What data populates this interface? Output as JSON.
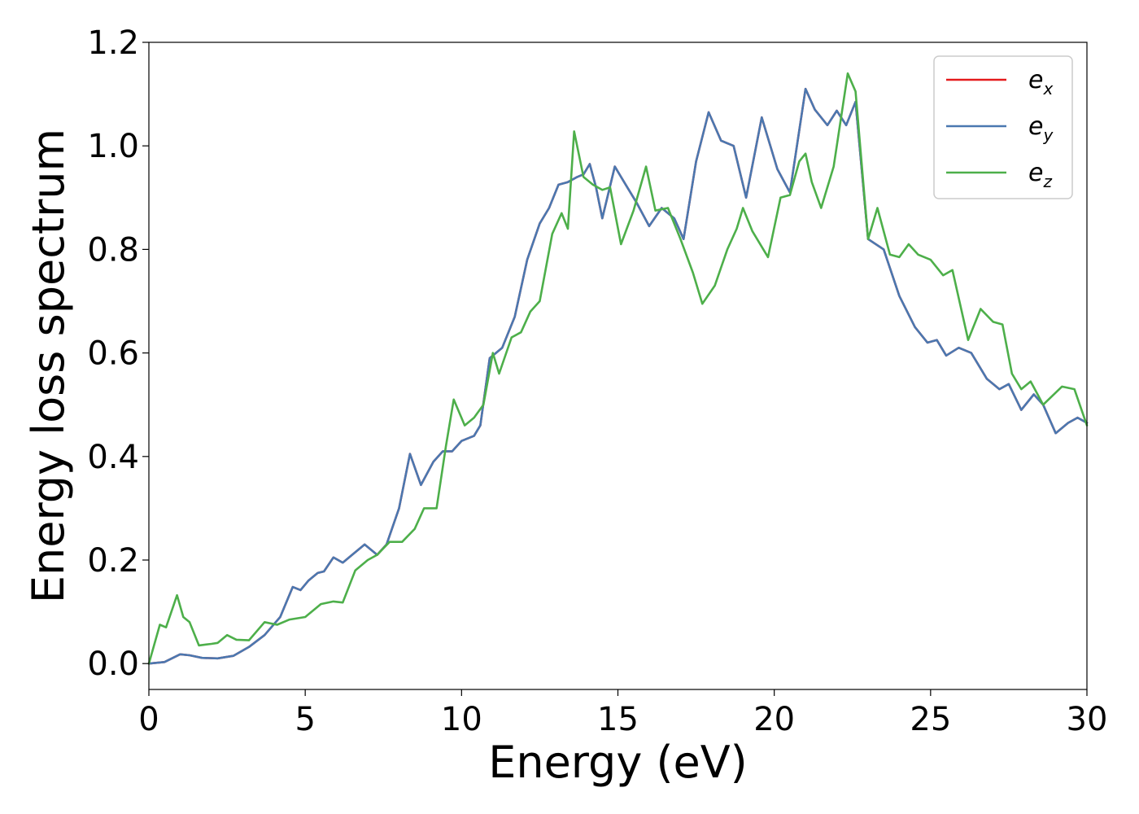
{
  "chart_data": {
    "type": "line",
    "xlabel": "Energy (eV)",
    "ylabel": "Energy loss spectrum",
    "xlim": [
      0,
      30
    ],
    "ylim": [
      -0.05,
      1.2
    ],
    "x_ticks": [
      0,
      5,
      10,
      15,
      20,
      25,
      30
    ],
    "x_tick_labels": [
      "0",
      "5",
      "10",
      "15",
      "20",
      "25",
      "30"
    ],
    "y_ticks": [
      0.0,
      0.2,
      0.4,
      0.6,
      0.8,
      1.0,
      1.2
    ],
    "y_tick_labels": [
      "0.0",
      "0.2",
      "0.4",
      "0.6",
      "0.8",
      "1.0",
      "1.2"
    ],
    "grid": false,
    "legend_position": "top-right",
    "legend": [
      {
        "base": "e",
        "sub": "x",
        "color": "#e41a1c"
      },
      {
        "base": "e",
        "sub": "y",
        "color": "#4a78b0"
      },
      {
        "base": "e",
        "sub": "z",
        "color": "#4daf4a"
      }
    ],
    "series": [
      {
        "name": "e_x",
        "color": "#e41a1c",
        "points": [
          [
            0,
            0
          ],
          [
            0.5,
            0.003
          ],
          [
            1,
            0.018
          ],
          [
            1.3,
            0.016
          ],
          [
            1.7,
            0.011
          ],
          [
            2.2,
            0.01
          ],
          [
            2.7,
            0.015
          ],
          [
            3.2,
            0.032
          ],
          [
            3.7,
            0.055
          ],
          [
            4.2,
            0.09
          ],
          [
            4.6,
            0.148
          ],
          [
            4.85,
            0.142
          ],
          [
            5.1,
            0.16
          ],
          [
            5.4,
            0.175
          ],
          [
            5.6,
            0.178
          ],
          [
            5.9,
            0.205
          ],
          [
            6.2,
            0.195
          ],
          [
            6.5,
            0.21
          ],
          [
            6.9,
            0.23
          ],
          [
            7.3,
            0.21
          ],
          [
            7.6,
            0.23
          ],
          [
            8,
            0.3
          ],
          [
            8.35,
            0.405
          ],
          [
            8.7,
            0.345
          ],
          [
            9.1,
            0.39
          ],
          [
            9.4,
            0.41
          ],
          [
            9.7,
            0.41
          ],
          [
            10,
            0.43
          ],
          [
            10.4,
            0.44
          ],
          [
            10.6,
            0.46
          ],
          [
            10.9,
            0.59
          ],
          [
            11.3,
            0.61
          ],
          [
            11.7,
            0.67
          ],
          [
            12.1,
            0.78
          ],
          [
            12.5,
            0.85
          ],
          [
            12.8,
            0.88
          ],
          [
            13.1,
            0.925
          ],
          [
            13.4,
            0.93
          ],
          [
            13.7,
            0.94
          ],
          [
            13.9,
            0.945
          ],
          [
            14.1,
            0.965
          ],
          [
            14.3,
            0.92
          ],
          [
            14.5,
            0.86
          ],
          [
            14.9,
            0.96
          ],
          [
            15.3,
            0.92
          ],
          [
            15.6,
            0.89
          ],
          [
            16,
            0.845
          ],
          [
            16.4,
            0.88
          ],
          [
            16.8,
            0.86
          ],
          [
            17.1,
            0.82
          ],
          [
            17.5,
            0.97
          ],
          [
            17.9,
            1.065
          ],
          [
            18.3,
            1.01
          ],
          [
            18.7,
            1.0
          ],
          [
            19.1,
            0.9
          ],
          [
            19.6,
            1.055
          ],
          [
            20.1,
            0.955
          ],
          [
            20.5,
            0.91
          ],
          [
            21,
            1.11
          ],
          [
            21.3,
            1.07
          ],
          [
            21.7,
            1.04
          ],
          [
            22,
            1.068
          ],
          [
            22.3,
            1.04
          ],
          [
            22.6,
            1.085
          ],
          [
            23,
            0.82
          ],
          [
            23.5,
            0.8
          ],
          [
            24,
            0.71
          ],
          [
            24.5,
            0.65
          ],
          [
            24.9,
            0.62
          ],
          [
            25.2,
            0.625
          ],
          [
            25.5,
            0.595
          ],
          [
            25.9,
            0.61
          ],
          [
            26.3,
            0.6
          ],
          [
            26.8,
            0.55
          ],
          [
            27.2,
            0.53
          ],
          [
            27.5,
            0.54
          ],
          [
            27.9,
            0.49
          ],
          [
            28.3,
            0.52
          ],
          [
            28.6,
            0.5
          ],
          [
            29,
            0.445
          ],
          [
            29.4,
            0.465
          ],
          [
            29.7,
            0.475
          ],
          [
            30,
            0.465
          ]
        ]
      },
      {
        "name": "e_y",
        "color": "#4a78b0",
        "points": [
          [
            0,
            0
          ],
          [
            0.5,
            0.003
          ],
          [
            1,
            0.018
          ],
          [
            1.3,
            0.016
          ],
          [
            1.7,
            0.011
          ],
          [
            2.2,
            0.01
          ],
          [
            2.7,
            0.015
          ],
          [
            3.2,
            0.032
          ],
          [
            3.7,
            0.055
          ],
          [
            4.2,
            0.09
          ],
          [
            4.6,
            0.148
          ],
          [
            4.85,
            0.142
          ],
          [
            5.1,
            0.16
          ],
          [
            5.4,
            0.175
          ],
          [
            5.6,
            0.178
          ],
          [
            5.9,
            0.205
          ],
          [
            6.2,
            0.195
          ],
          [
            6.5,
            0.21
          ],
          [
            6.9,
            0.23
          ],
          [
            7.3,
            0.21
          ],
          [
            7.6,
            0.23
          ],
          [
            8,
            0.3
          ],
          [
            8.35,
            0.405
          ],
          [
            8.7,
            0.345
          ],
          [
            9.1,
            0.39
          ],
          [
            9.4,
            0.41
          ],
          [
            9.7,
            0.41
          ],
          [
            10,
            0.43
          ],
          [
            10.4,
            0.44
          ],
          [
            10.6,
            0.46
          ],
          [
            10.9,
            0.59
          ],
          [
            11.3,
            0.61
          ],
          [
            11.7,
            0.67
          ],
          [
            12.1,
            0.78
          ],
          [
            12.5,
            0.85
          ],
          [
            12.8,
            0.88
          ],
          [
            13.1,
            0.925
          ],
          [
            13.4,
            0.93
          ],
          [
            13.7,
            0.94
          ],
          [
            13.9,
            0.945
          ],
          [
            14.1,
            0.965
          ],
          [
            14.3,
            0.92
          ],
          [
            14.5,
            0.86
          ],
          [
            14.9,
            0.96
          ],
          [
            15.3,
            0.92
          ],
          [
            15.6,
            0.89
          ],
          [
            16,
            0.845
          ],
          [
            16.4,
            0.88
          ],
          [
            16.8,
            0.86
          ],
          [
            17.1,
            0.82
          ],
          [
            17.5,
            0.97
          ],
          [
            17.9,
            1.065
          ],
          [
            18.3,
            1.01
          ],
          [
            18.7,
            1.0
          ],
          [
            19.1,
            0.9
          ],
          [
            19.6,
            1.055
          ],
          [
            20.1,
            0.955
          ],
          [
            20.5,
            0.91
          ],
          [
            21,
            1.11
          ],
          [
            21.3,
            1.07
          ],
          [
            21.7,
            1.04
          ],
          [
            22,
            1.068
          ],
          [
            22.3,
            1.04
          ],
          [
            22.6,
            1.085
          ],
          [
            23,
            0.82
          ],
          [
            23.5,
            0.8
          ],
          [
            24,
            0.71
          ],
          [
            24.5,
            0.65
          ],
          [
            24.9,
            0.62
          ],
          [
            25.2,
            0.625
          ],
          [
            25.5,
            0.595
          ],
          [
            25.9,
            0.61
          ],
          [
            26.3,
            0.6
          ],
          [
            26.8,
            0.55
          ],
          [
            27.2,
            0.53
          ],
          [
            27.5,
            0.54
          ],
          [
            27.9,
            0.49
          ],
          [
            28.3,
            0.52
          ],
          [
            28.6,
            0.5
          ],
          [
            29,
            0.445
          ],
          [
            29.4,
            0.465
          ],
          [
            29.7,
            0.475
          ],
          [
            30,
            0.465
          ]
        ]
      },
      {
        "name": "e_z",
        "color": "#4daf4a",
        "points": [
          [
            0,
            0
          ],
          [
            0.35,
            0.075
          ],
          [
            0.55,
            0.07
          ],
          [
            0.9,
            0.132
          ],
          [
            1.1,
            0.09
          ],
          [
            1.3,
            0.08
          ],
          [
            1.6,
            0.035
          ],
          [
            2,
            0.038
          ],
          [
            2.2,
            0.04
          ],
          [
            2.5,
            0.055
          ],
          [
            2.8,
            0.046
          ],
          [
            3.2,
            0.045
          ],
          [
            3.7,
            0.08
          ],
          [
            4.1,
            0.075
          ],
          [
            4.5,
            0.085
          ],
          [
            5,
            0.09
          ],
          [
            5.5,
            0.115
          ],
          [
            5.9,
            0.12
          ],
          [
            6.2,
            0.118
          ],
          [
            6.6,
            0.18
          ],
          [
            7,
            0.2
          ],
          [
            7.3,
            0.21
          ],
          [
            7.7,
            0.235
          ],
          [
            8.1,
            0.235
          ],
          [
            8.5,
            0.26
          ],
          [
            8.8,
            0.3
          ],
          [
            9.2,
            0.3
          ],
          [
            9.5,
            0.42
          ],
          [
            9.75,
            0.51
          ],
          [
            10.1,
            0.46
          ],
          [
            10.4,
            0.475
          ],
          [
            10.7,
            0.5
          ],
          [
            11,
            0.6
          ],
          [
            11.2,
            0.56
          ],
          [
            11.6,
            0.63
          ],
          [
            11.9,
            0.64
          ],
          [
            12.2,
            0.68
          ],
          [
            12.5,
            0.7
          ],
          [
            12.9,
            0.83
          ],
          [
            13.2,
            0.87
          ],
          [
            13.4,
            0.84
          ],
          [
            13.6,
            1.028
          ],
          [
            13.9,
            0.94
          ],
          [
            14.2,
            0.925
          ],
          [
            14.5,
            0.915
          ],
          [
            14.75,
            0.92
          ],
          [
            15.1,
            0.81
          ],
          [
            15.5,
            0.875
          ],
          [
            15.9,
            0.96
          ],
          [
            16.2,
            0.875
          ],
          [
            16.6,
            0.88
          ],
          [
            17,
            0.82
          ],
          [
            17.4,
            0.755
          ],
          [
            17.7,
            0.695
          ],
          [
            18.1,
            0.73
          ],
          [
            18.5,
            0.8
          ],
          [
            18.8,
            0.84
          ],
          [
            19,
            0.88
          ],
          [
            19.3,
            0.835
          ],
          [
            19.8,
            0.785
          ],
          [
            20.2,
            0.9
          ],
          [
            20.5,
            0.905
          ],
          [
            20.8,
            0.97
          ],
          [
            21,
            0.985
          ],
          [
            21.2,
            0.93
          ],
          [
            21.5,
            0.88
          ],
          [
            21.9,
            0.96
          ],
          [
            22.35,
            1.14
          ],
          [
            22.6,
            1.105
          ],
          [
            23,
            0.82
          ],
          [
            23.3,
            0.88
          ],
          [
            23.7,
            0.79
          ],
          [
            24,
            0.785
          ],
          [
            24.3,
            0.81
          ],
          [
            24.6,
            0.79
          ],
          [
            25,
            0.78
          ],
          [
            25.4,
            0.75
          ],
          [
            25.7,
            0.76
          ],
          [
            26.2,
            0.625
          ],
          [
            26.6,
            0.685
          ],
          [
            27,
            0.66
          ],
          [
            27.3,
            0.655
          ],
          [
            27.6,
            0.56
          ],
          [
            27.9,
            0.53
          ],
          [
            28.2,
            0.545
          ],
          [
            28.6,
            0.5
          ],
          [
            29.2,
            0.535
          ],
          [
            29.6,
            0.53
          ],
          [
            30,
            0.46
          ]
        ]
      }
    ]
  }
}
